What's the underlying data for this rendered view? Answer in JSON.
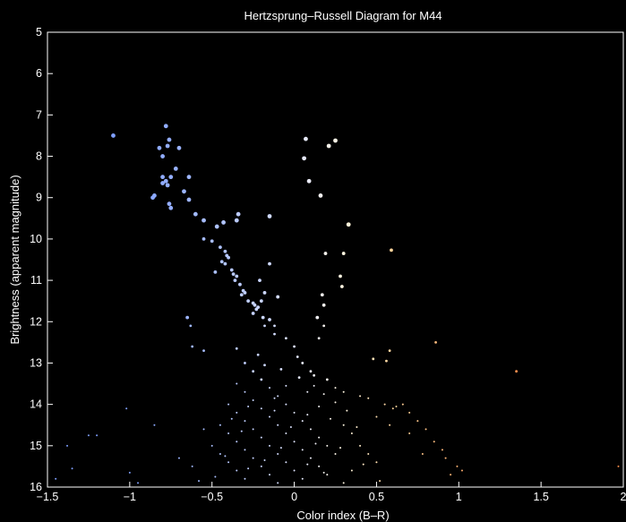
{
  "chart_data": {
    "type": "scatter",
    "title": "Hertzsprung–Russell Diagram for M44",
    "xlabel": "Color index (B–R)",
    "ylabel": "Brightness (apparent magnitude)",
    "xlim": [
      -1.5,
      2
    ],
    "ylim": [
      5,
      16
    ],
    "y_inverted": true,
    "grid": false,
    "background": "#000000",
    "foreground": "#ffffff",
    "xticks": [
      -1.5,
      -1,
      -0.5,
      0,
      0.5,
      1,
      1.5,
      2
    ],
    "xtick_labels": [
      "−1.5",
      "−1",
      "−0.5",
      "0",
      "0.5",
      "1",
      "1.5",
      "2"
    ],
    "yticks": [
      5,
      6,
      7,
      8,
      9,
      10,
      11,
      12,
      13,
      14,
      15,
      16
    ],
    "ytick_labels": [
      "5",
      "6",
      "7",
      "8",
      "9",
      "10",
      "11",
      "12",
      "13",
      "14",
      "15",
      "16"
    ],
    "color_scale": [
      {
        "bmr": -1.0,
        "color": "#7f9fff"
      },
      {
        "bmr": -0.5,
        "color": "#aabfff"
      },
      {
        "bmr": 0.0,
        "color": "#dfe5ff"
      },
      {
        "bmr": 0.3,
        "color": "#fff6e0"
      },
      {
        "bmr": 0.6,
        "color": "#ffd49a"
      },
      {
        "bmr": 1.0,
        "color": "#ffb070"
      },
      {
        "bmr": 1.4,
        "color": "#ff8c4a"
      }
    ],
    "points": [
      [
        -1.1,
        7.5
      ],
      [
        -0.78,
        7.27
      ],
      [
        -0.76,
        7.6
      ],
      [
        -0.82,
        7.8
      ],
      [
        -0.77,
        7.75
      ],
      [
        -0.7,
        7.8
      ],
      [
        -0.8,
        8.0
      ],
      [
        -0.72,
        8.3
      ],
      [
        -0.8,
        8.5
      ],
      [
        -0.75,
        8.5
      ],
      [
        -0.78,
        8.6
      ],
      [
        -0.8,
        8.65
      ],
      [
        -0.77,
        8.7
      ],
      [
        -0.64,
        8.5
      ],
      [
        -0.67,
        8.85
      ],
      [
        -0.85,
        8.95
      ],
      [
        -0.86,
        9.0
      ],
      [
        -0.64,
        9.05
      ],
      [
        -0.76,
        9.15
      ],
      [
        -0.75,
        9.25
      ],
      [
        -0.6,
        9.4
      ],
      [
        -0.55,
        9.55
      ],
      [
        -0.47,
        9.7
      ],
      [
        -0.43,
        9.6
      ],
      [
        -0.35,
        9.55
      ],
      [
        -0.34,
        9.4
      ],
      [
        -0.15,
        9.45
      ],
      [
        -0.55,
        10.0
      ],
      [
        -0.5,
        10.05
      ],
      [
        -0.45,
        10.2
      ],
      [
        -0.42,
        10.3
      ],
      [
        -0.41,
        10.4
      ],
      [
        -0.4,
        10.45
      ],
      [
        -0.44,
        10.55
      ],
      [
        -0.42,
        10.6
      ],
      [
        -0.48,
        10.8
      ],
      [
        -0.38,
        10.75
      ],
      [
        -0.37,
        10.85
      ],
      [
        -0.35,
        10.9
      ],
      [
        -0.36,
        11.0
      ],
      [
        -0.33,
        11.1
      ],
      [
        -0.31,
        11.25
      ],
      [
        -0.3,
        11.3
      ],
      [
        -0.32,
        11.35
      ],
      [
        -0.28,
        11.5
      ],
      [
        -0.25,
        11.55
      ],
      [
        -0.24,
        11.6
      ],
      [
        -0.23,
        11.7
      ],
      [
        -0.22,
        11.65
      ],
      [
        -0.2,
        11.5
      ],
      [
        -0.25,
        11.8
      ],
      [
        -0.19,
        11.9
      ],
      [
        -0.15,
        11.95
      ],
      [
        -0.18,
        12.1
      ],
      [
        -0.12,
        12.1
      ],
      [
        -0.1,
        11.4
      ],
      [
        -0.18,
        11.3
      ],
      [
        -0.21,
        11.0
      ],
      [
        -0.15,
        10.6
      ],
      [
        0.07,
        7.58
      ],
      [
        0.21,
        7.75
      ],
      [
        0.25,
        7.62
      ],
      [
        0.06,
        8.05
      ],
      [
        0.09,
        8.6
      ],
      [
        0.16,
        8.95
      ],
      [
        0.33,
        9.65
      ],
      [
        0.19,
        10.35
      ],
      [
        0.3,
        10.35
      ],
      [
        0.59,
        10.27
      ],
      [
        0.28,
        10.9
      ],
      [
        0.29,
        11.15
      ],
      [
        0.17,
        11.35
      ],
      [
        0.18,
        11.6
      ],
      [
        0.14,
        11.9
      ],
      [
        0.18,
        12.1
      ],
      [
        0.15,
        12.4
      ],
      [
        -0.65,
        11.9
      ],
      [
        -0.63,
        12.1
      ],
      [
        -0.62,
        12.6
      ],
      [
        -0.55,
        12.7
      ],
      [
        -0.35,
        12.65
      ],
      [
        0.86,
        12.5
      ],
      [
        0.58,
        12.7
      ],
      [
        1.35,
        13.2
      ],
      [
        0.48,
        12.9
      ],
      [
        0.56,
        12.95
      ],
      [
        -0.12,
        12.3
      ],
      [
        -0.05,
        12.4
      ],
      [
        0.0,
        12.6
      ],
      [
        0.02,
        12.85
      ],
      [
        0.05,
        13.0
      ],
      [
        0.1,
        13.2
      ],
      [
        0.12,
        13.3
      ],
      [
        0.2,
        13.4
      ],
      [
        0.25,
        13.6
      ],
      [
        0.3,
        13.7
      ],
      [
        0.4,
        13.8
      ],
      [
        0.45,
        13.85
      ],
      [
        0.25,
        13.95
      ],
      [
        0.55,
        14.0
      ],
      [
        0.6,
        14.1
      ],
      [
        0.62,
        14.05
      ],
      [
        0.66,
        14.0
      ],
      [
        0.7,
        14.2
      ],
      [
        0.5,
        14.3
      ],
      [
        0.75,
        14.4
      ],
      [
        0.58,
        14.5
      ],
      [
        0.8,
        14.6
      ],
      [
        0.7,
        14.7
      ],
      [
        0.85,
        14.9
      ],
      [
        0.9,
        15.1
      ],
      [
        0.78,
        15.2
      ],
      [
        0.92,
        15.3
      ],
      [
        0.99,
        15.5
      ],
      [
        1.02,
        15.6
      ],
      [
        0.95,
        15.7
      ],
      [
        -1.02,
        14.1
      ],
      [
        -0.85,
        14.5
      ],
      [
        -0.55,
        14.6
      ],
      [
        -1.2,
        14.75
      ],
      [
        -1.25,
        14.75
      ],
      [
        -1.38,
        15.0
      ],
      [
        -1.35,
        15.55
      ],
      [
        -1.0,
        15.65
      ],
      [
        -1.45,
        15.8
      ],
      [
        -0.95,
        15.9
      ],
      [
        -0.7,
        15.3
      ],
      [
        -0.62,
        15.5
      ],
      [
        -0.58,
        15.85
      ],
      [
        1.97,
        15.5
      ],
      [
        -0.3,
        13.0
      ],
      [
        -0.25,
        13.2
      ],
      [
        -0.2,
        13.4
      ],
      [
        -0.15,
        13.6
      ],
      [
        -0.1,
        13.8
      ],
      [
        -0.05,
        14.0
      ],
      [
        0.0,
        14.2
      ],
      [
        0.05,
        14.4
      ],
      [
        0.1,
        14.6
      ],
      [
        0.15,
        14.8
      ],
      [
        0.2,
        15.0
      ],
      [
        0.25,
        15.2
      ],
      [
        -0.35,
        13.5
      ],
      [
        -0.3,
        13.7
      ],
      [
        -0.25,
        13.9
      ],
      [
        -0.2,
        14.1
      ],
      [
        -0.15,
        14.3
      ],
      [
        -0.1,
        14.5
      ],
      [
        -0.05,
        14.7
      ],
      [
        0.0,
        14.9
      ],
      [
        0.05,
        15.1
      ],
      [
        0.1,
        15.3
      ],
      [
        0.15,
        15.5
      ],
      [
        0.2,
        15.7
      ],
      [
        -0.4,
        14.0
      ],
      [
        -0.35,
        14.2
      ],
      [
        -0.3,
        14.4
      ],
      [
        -0.25,
        14.6
      ],
      [
        -0.2,
        14.8
      ],
      [
        -0.15,
        15.0
      ],
      [
        -0.1,
        15.2
      ],
      [
        -0.05,
        15.4
      ],
      [
        0.0,
        15.6
      ],
      [
        0.05,
        15.8
      ],
      [
        0.3,
        14.5
      ],
      [
        0.35,
        14.7
      ],
      [
        -0.45,
        14.5
      ],
      [
        -0.4,
        14.7
      ],
      [
        -0.35,
        14.9
      ],
      [
        -0.3,
        15.1
      ],
      [
        -0.25,
        15.3
      ],
      [
        -0.2,
        15.5
      ],
      [
        -0.15,
        15.7
      ],
      [
        -0.1,
        15.9
      ],
      [
        0.4,
        15.0
      ],
      [
        0.45,
        15.2
      ],
      [
        0.5,
        15.4
      ],
      [
        0.35,
        15.6
      ],
      [
        -0.5,
        15.0
      ],
      [
        -0.45,
        15.2
      ],
      [
        -0.4,
        15.4
      ],
      [
        -0.35,
        15.6
      ],
      [
        -0.3,
        15.8
      ],
      [
        0.3,
        15.9
      ],
      [
        -0.22,
        12.8
      ],
      [
        -0.18,
        13.05
      ],
      [
        -0.08,
        13.15
      ],
      [
        0.03,
        13.35
      ],
      [
        0.12,
        13.55
      ],
      [
        0.18,
        13.75
      ],
      [
        -0.28,
        14.05
      ],
      [
        -0.12,
        14.15
      ],
      [
        0.08,
        14.25
      ],
      [
        0.22,
        14.35
      ],
      [
        0.38,
        14.55
      ],
      [
        -0.02,
        14.55
      ],
      [
        -0.32,
        14.65
      ],
      [
        0.13,
        14.95
      ],
      [
        0.28,
        15.05
      ],
      [
        -0.08,
        15.05
      ],
      [
        -0.42,
        15.25
      ],
      [
        0.42,
        15.45
      ],
      [
        -0.18,
        15.35
      ],
      [
        0.08,
        15.45
      ],
      [
        -0.28,
        15.55
      ],
      [
        0.18,
        15.65
      ],
      [
        -0.48,
        15.75
      ],
      [
        0.52,
        15.85
      ],
      [
        -0.05,
        13.55
      ],
      [
        0.08,
        13.7
      ],
      [
        -0.12,
        13.85
      ],
      [
        0.15,
        14.05
      ],
      [
        0.32,
        14.15
      ],
      [
        -0.38,
        14.35
      ]
    ]
  }
}
